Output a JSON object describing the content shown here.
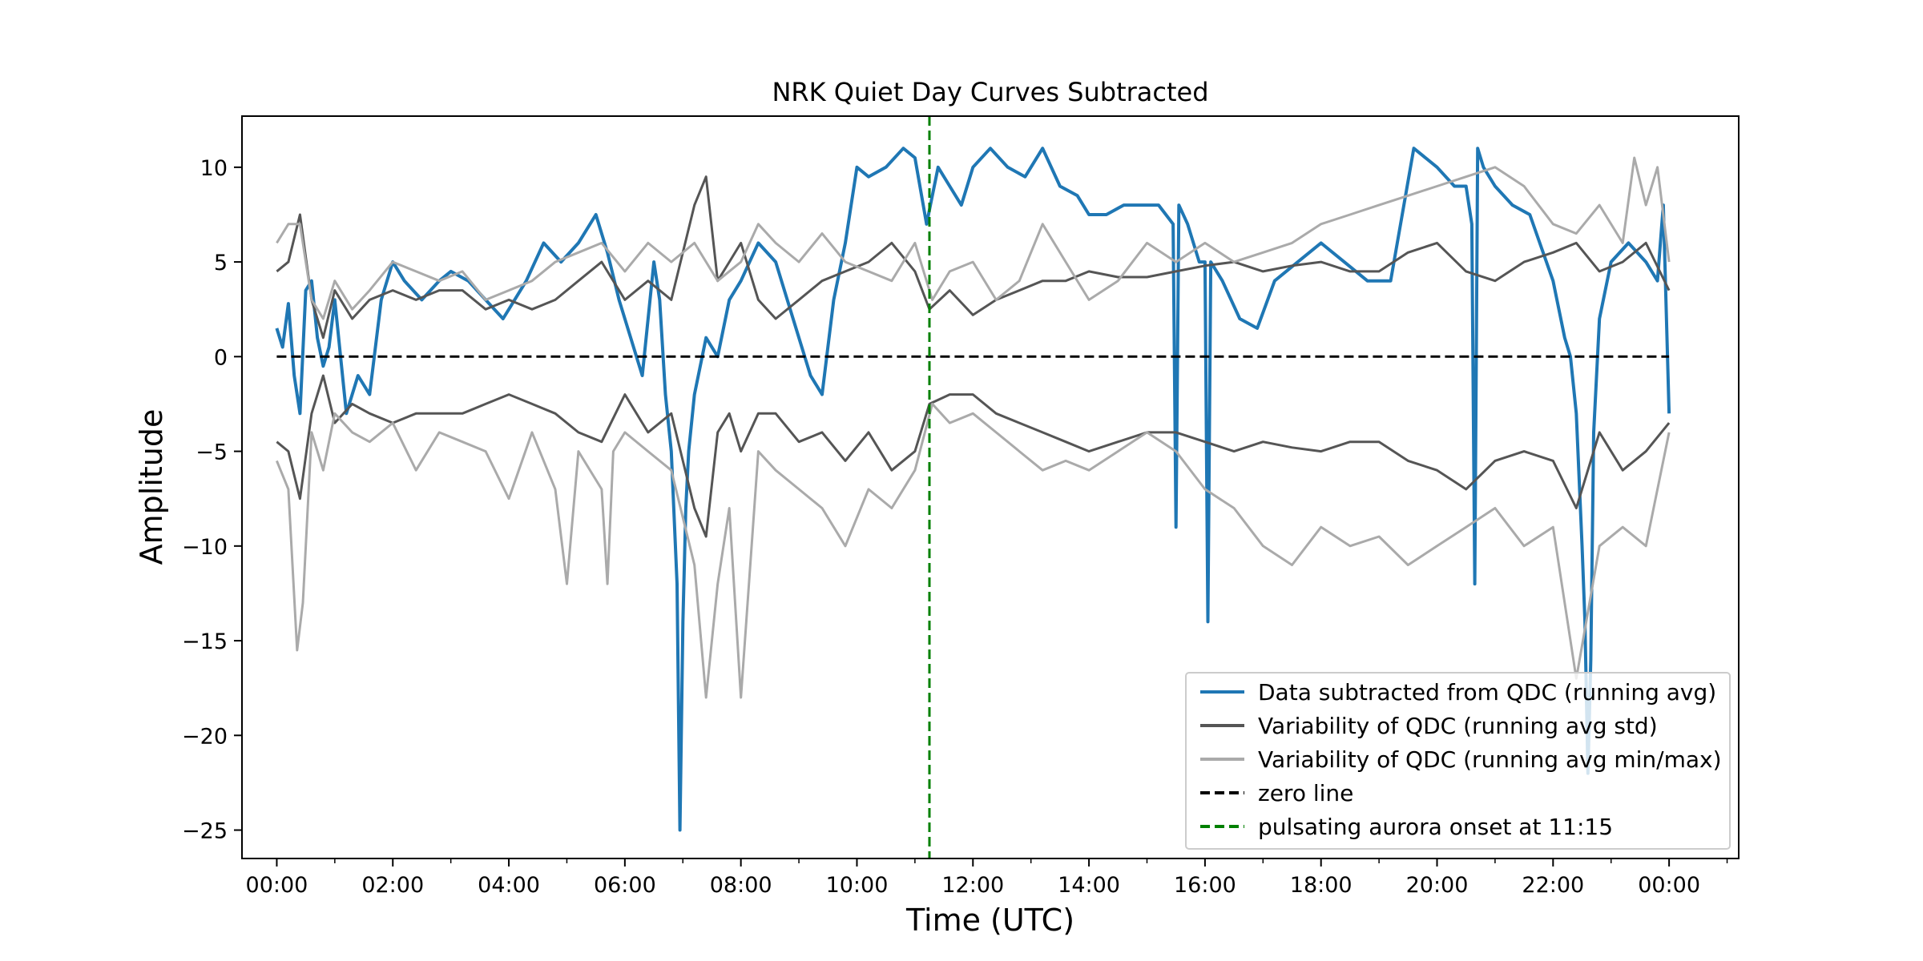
{
  "chart_data": {
    "type": "line",
    "title": "NRK Quiet Day Curves Subtracted",
    "xlabel": "Time (UTC)",
    "ylabel": "Amplitude",
    "xlim": [
      -0.6,
      25.2
    ],
    "ylim": [
      -26.5,
      12.7
    ],
    "x_ticks": [
      {
        "x": 0,
        "label": "00:00"
      },
      {
        "x": 2,
        "label": "02:00"
      },
      {
        "x": 4,
        "label": "04:00"
      },
      {
        "x": 6,
        "label": "06:00"
      },
      {
        "x": 8,
        "label": "08:00"
      },
      {
        "x": 10,
        "label": "10:00"
      },
      {
        "x": 12,
        "label": "12:00"
      },
      {
        "x": 14,
        "label": "14:00"
      },
      {
        "x": 16,
        "label": "16:00"
      },
      {
        "x": 18,
        "label": "18:00"
      },
      {
        "x": 20,
        "label": "20:00"
      },
      {
        "x": 22,
        "label": "22:00"
      },
      {
        "x": 24,
        "label": "00:00"
      }
    ],
    "y_ticks": [
      {
        "y": 10,
        "label": "10"
      },
      {
        "y": 5,
        "label": "5"
      },
      {
        "y": 0,
        "label": "0"
      },
      {
        "y": -5,
        "label": "−5"
      },
      {
        "y": -10,
        "label": "−10"
      },
      {
        "y": -15,
        "label": "−15"
      },
      {
        "y": -20,
        "label": "−20"
      },
      {
        "y": -25,
        "label": "−25"
      }
    ],
    "grid": false,
    "legend_position": "bottom-right",
    "series": [
      {
        "name": "Data subtracted from QDC (running avg)",
        "color": "#1f77b4",
        "style": "solid",
        "x": [
          0,
          0.1,
          0.2,
          0.3,
          0.4,
          0.5,
          0.6,
          0.7,
          0.8,
          0.9,
          1.0,
          1.2,
          1.4,
          1.6,
          1.8,
          2.0,
          2.2,
          2.5,
          2.8,
          3.0,
          3.3,
          3.6,
          3.9,
          4.0,
          4.3,
          4.6,
          4.9,
          5.2,
          5.5,
          5.7,
          5.9,
          6.1,
          6.3,
          6.5,
          6.6,
          6.7,
          6.8,
          6.9,
          6.95,
          7.0,
          7.05,
          7.1,
          7.2,
          7.4,
          7.6,
          7.8,
          8.0,
          8.3,
          8.6,
          8.9,
          9.2,
          9.4,
          9.6,
          9.8,
          10.0,
          10.2,
          10.5,
          10.8,
          11.0,
          11.2,
          11.4,
          11.6,
          11.8,
          12.0,
          12.3,
          12.6,
          12.9,
          13.2,
          13.5,
          13.8,
          14.0,
          14.3,
          14.6,
          14.9,
          15.2,
          15.45,
          15.5,
          15.55,
          15.7,
          15.9,
          16.0,
          16.05,
          16.1,
          16.3,
          16.6,
          16.9,
          17.2,
          17.6,
          18.0,
          18.4,
          18.8,
          19.2,
          19.6,
          20.0,
          20.3,
          20.5,
          20.6,
          20.65,
          20.7,
          20.8,
          21.0,
          21.3,
          21.6,
          22.0,
          22.2,
          22.3,
          22.4,
          22.5,
          22.55,
          22.6,
          22.65,
          22.7,
          22.8,
          23.0,
          23.3,
          23.6,
          23.8,
          23.9,
          24.0
        ],
        "y": [
          1.5,
          0.5,
          2.8,
          -1,
          -3,
          3.5,
          4.0,
          1,
          -0.5,
          0.5,
          3,
          -3,
          -1,
          -2,
          3,
          5,
          4,
          3,
          4,
          4.5,
          4,
          3,
          2,
          2.5,
          4,
          6,
          5,
          6,
          7.5,
          5.5,
          3,
          1,
          -1,
          5,
          3,
          -2,
          -5,
          -12,
          -25,
          -14,
          -8,
          -5,
          -2,
          1,
          0,
          3,
          4,
          6,
          5,
          2,
          -1,
          -2,
          3,
          6,
          10,
          9.5,
          10,
          11,
          10.5,
          7,
          10,
          9,
          8,
          10,
          11,
          10,
          9.5,
          11,
          9,
          8.5,
          7.5,
          7.5,
          8,
          8,
          8,
          7,
          -9,
          8,
          7,
          5,
          5,
          -14,
          5,
          4,
          2,
          1.5,
          4,
          5,
          6,
          5,
          4,
          4,
          11,
          10,
          9,
          9,
          7,
          -12,
          11,
          10,
          9,
          8,
          7.5,
          4,
          1,
          0,
          -3,
          -10,
          -14,
          -22,
          -16,
          -4,
          2,
          5,
          6,
          5,
          4,
          8,
          -3
        ]
      },
      {
        "name": "Variability of QDC (running avg std)",
        "color": "#555555",
        "style": "solid",
        "x": [
          0,
          0.2,
          0.4,
          0.6,
          0.8,
          1.0,
          1.3,
          1.6,
          2.0,
          2.4,
          2.8,
          3.2,
          3.6,
          4.0,
          4.4,
          4.8,
          5.2,
          5.6,
          6.0,
          6.4,
          6.8,
          7.2,
          7.4,
          7.6,
          7.8,
          8.0,
          8.3,
          8.6,
          9.0,
          9.4,
          9.8,
          10.2,
          10.6,
          11.0,
          11.25,
          11.6,
          12.0,
          12.4,
          12.8,
          13.2,
          13.6,
          14.0,
          14.5,
          15.0,
          15.5,
          16.0,
          16.5,
          17.0,
          17.5,
          18.0,
          18.5,
          19.0,
          19.5,
          20.0,
          20.5,
          21.0,
          21.5,
          22.0,
          22.4,
          22.8,
          23.2,
          23.6,
          24.0
        ],
        "y": [
          4.5,
          5,
          7.5,
          3,
          1,
          3.5,
          2,
          3,
          3.5,
          3,
          3.5,
          3.5,
          2.5,
          3,
          2.5,
          3,
          4,
          5,
          3,
          4,
          3,
          8,
          9.5,
          4,
          5,
          6,
          3,
          2,
          3,
          4,
          4.5,
          5,
          6,
          4.5,
          2.5,
          3.5,
          2.2,
          3,
          3.5,
          4,
          4,
          4.5,
          4.2,
          4.2,
          4.5,
          4.8,
          5,
          4.5,
          4.8,
          5,
          4.5,
          4.5,
          5.5,
          6,
          4.5,
          4,
          5,
          5.5,
          6,
          4.5,
          5,
          6,
          3.5
        ]
      },
      {
        "name": "Variability of QDC (running avg std)",
        "color": "#555555",
        "style": "solid",
        "legend": false,
        "x": [
          0,
          0.2,
          0.4,
          0.6,
          0.8,
          1.0,
          1.3,
          1.6,
          2.0,
          2.4,
          2.8,
          3.2,
          3.6,
          4.0,
          4.4,
          4.8,
          5.2,
          5.6,
          6.0,
          6.4,
          6.8,
          7.2,
          7.4,
          7.6,
          7.8,
          8.0,
          8.3,
          8.6,
          9.0,
          9.4,
          9.8,
          10.2,
          10.6,
          11.0,
          11.25,
          11.6,
          12.0,
          12.4,
          12.8,
          13.2,
          13.6,
          14.0,
          14.5,
          15.0,
          15.5,
          16.0,
          16.5,
          17.0,
          17.5,
          18.0,
          18.5,
          19.0,
          19.5,
          20.0,
          20.5,
          21.0,
          21.5,
          22.0,
          22.4,
          22.8,
          23.2,
          23.6,
          24.0
        ],
        "y": [
          -4.5,
          -5,
          -7.5,
          -3,
          -1,
          -3.5,
          -2.5,
          -3,
          -3.5,
          -3,
          -3,
          -3,
          -2.5,
          -2,
          -2.5,
          -3,
          -4,
          -4.5,
          -2,
          -4,
          -3,
          -8,
          -9.5,
          -4,
          -3,
          -5,
          -3,
          -3,
          -4.5,
          -4,
          -5.5,
          -4,
          -6,
          -5,
          -2.5,
          -2,
          -2,
          -3,
          -3.5,
          -4,
          -4.5,
          -5,
          -4.5,
          -4,
          -4,
          -4.5,
          -5,
          -4.5,
          -4.8,
          -5,
          -4.5,
          -4.5,
          -5.5,
          -6,
          -7,
          -5.5,
          -5,
          -5.5,
          -8,
          -4,
          -6,
          -5,
          -3.5
        ]
      },
      {
        "name": "Variability of QDC (running avg min/max)",
        "color": "#aaaaaa",
        "style": "solid",
        "x": [
          0,
          0.2,
          0.4,
          0.6,
          0.8,
          1.0,
          1.3,
          1.6,
          2.0,
          2.4,
          2.8,
          3.2,
          3.6,
          4.0,
          4.4,
          4.8,
          5.2,
          5.6,
          6.0,
          6.4,
          6.8,
          7.2,
          7.6,
          8.0,
          8.3,
          8.6,
          9.0,
          9.4,
          9.8,
          10.2,
          10.6,
          11.0,
          11.3,
          11.6,
          12.0,
          12.4,
          12.8,
          13.2,
          13.6,
          14.0,
          14.5,
          15.0,
          15.5,
          16.0,
          16.5,
          17.0,
          17.5,
          18.0,
          18.5,
          19.0,
          19.5,
          20.0,
          20.5,
          21.0,
          21.5,
          22.0,
          22.4,
          22.8,
          23.2,
          23.4,
          23.6,
          23.8,
          24.0
        ],
        "y": [
          6,
          7,
          7,
          3,
          2,
          4,
          2.5,
          3.5,
          5,
          4.5,
          4,
          4.5,
          3,
          3.5,
          4,
          5,
          5.5,
          6,
          4.5,
          6,
          5,
          6,
          4,
          5,
          7,
          6,
          5,
          6.5,
          5,
          4.5,
          4,
          6,
          3,
          4.5,
          5,
          3,
          4,
          7,
          5,
          3,
          4,
          6,
          5,
          6,
          5,
          5.5,
          6,
          7,
          7.5,
          8,
          8.5,
          9,
          9.5,
          10,
          9,
          7,
          6.5,
          8,
          6,
          10.5,
          8,
          10,
          5
        ]
      },
      {
        "name": "Variability of QDC (running avg min/max)",
        "color": "#aaaaaa",
        "style": "solid",
        "legend": false,
        "x": [
          0,
          0.2,
          0.35,
          0.45,
          0.6,
          0.8,
          1.0,
          1.3,
          1.6,
          2.0,
          2.4,
          2.8,
          3.2,
          3.6,
          4.0,
          4.4,
          4.8,
          5.0,
          5.2,
          5.6,
          5.7,
          5.8,
          6.0,
          6.4,
          6.8,
          7.2,
          7.4,
          7.6,
          7.8,
          8.0,
          8.3,
          8.6,
          9.0,
          9.4,
          9.8,
          10.2,
          10.6,
          11.0,
          11.3,
          11.6,
          12.0,
          12.4,
          12.8,
          13.2,
          13.6,
          14.0,
          14.5,
          15.0,
          15.5,
          16.0,
          16.5,
          17.0,
          17.5,
          18.0,
          18.5,
          19.0,
          19.5,
          20.0,
          20.5,
          21.0,
          21.5,
          22.0,
          22.4,
          22.8,
          23.2,
          23.6,
          23.8,
          24.0
        ],
        "y": [
          -5.5,
          -7,
          -15.5,
          -13,
          -4,
          -6,
          -3,
          -4,
          -4.5,
          -3.5,
          -6,
          -4,
          -4.5,
          -5,
          -7.5,
          -4,
          -7,
          -12,
          -5,
          -7,
          -12,
          -5,
          -4,
          -5,
          -6,
          -11,
          -18,
          -12,
          -8,
          -18,
          -5,
          -6,
          -7,
          -8,
          -10,
          -7,
          -8,
          -6,
          -2.5,
          -3.5,
          -3,
          -4,
          -5,
          -6,
          -5.5,
          -6,
          -5,
          -4,
          -5,
          -7,
          -8,
          -10,
          -11,
          -9,
          -10,
          -9.5,
          -11,
          -10,
          -9,
          -8,
          -10,
          -9,
          -17,
          -10,
          -9,
          -10,
          -7,
          -4
        ]
      },
      {
        "name": "zero line",
        "color": "#000000",
        "style": "dashed",
        "x": [
          0,
          24
        ],
        "y": [
          0,
          0
        ]
      }
    ],
    "annotations": [
      {
        "type": "vline",
        "x": 11.25,
        "label": "pulsating aurora onset at 11:15",
        "color": "#008000",
        "style": "dashed"
      }
    ],
    "legend": [
      {
        "label": "Data subtracted from QDC (running avg)",
        "color": "#1f77b4",
        "style": "solid"
      },
      {
        "label": "Variability of QDC (running avg std)",
        "color": "#555555",
        "style": "solid"
      },
      {
        "label": "Variability of QDC (running avg min/max)",
        "color": "#aaaaaa",
        "style": "solid"
      },
      {
        "label": "zero line",
        "color": "#000000",
        "style": "dashed"
      },
      {
        "label": "pulsating aurora onset at 11:15",
        "color": "#008000",
        "style": "dashed"
      }
    ]
  }
}
